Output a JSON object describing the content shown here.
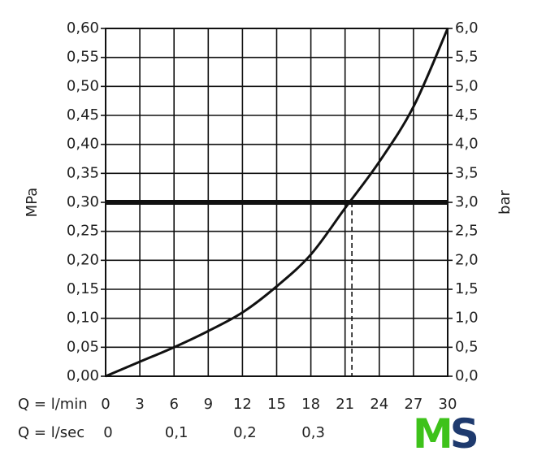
{
  "chart_data": {
    "type": "line",
    "y_label": "MPa",
    "y2_label": "bar",
    "x_row_label": "Q = l/min",
    "x2_row_label": "Q = l/sec",
    "x": [
      0,
      3,
      6,
      9,
      12,
      15,
      18,
      21,
      24,
      27,
      30
    ],
    "values": [
      0,
      0.025,
      0.05,
      0.078,
      0.11,
      0.155,
      0.21,
      0.29,
      0.37,
      0.465,
      0.6
    ],
    "color": "#111111",
    "xlim": [
      0,
      30
    ],
    "xticks": [
      0,
      3,
      6,
      9,
      12,
      15,
      18,
      21,
      24,
      27,
      30
    ],
    "x2lim": [
      0,
      0.5
    ],
    "x2ticks": [
      0,
      {
        "value": 0.1,
        "label": "0,1"
      },
      {
        "value": 0.2,
        "label": "0,2"
      },
      {
        "value": 0.3,
        "label": "0,3"
      }
    ],
    "ylim": [
      0,
      0.6
    ],
    "yticks": [
      {
        "value": 0,
        "label": "0,00"
      },
      {
        "value": 0.05,
        "label": "0,05"
      },
      {
        "value": 0.1,
        "label": "0,10"
      },
      {
        "value": 0.15,
        "label": "0,15"
      },
      {
        "value": 0.2,
        "label": "0,20"
      },
      {
        "value": 0.25,
        "label": "0,25"
      },
      {
        "value": 0.3,
        "label": "0,30"
      },
      {
        "value": 0.35,
        "label": "0,35"
      },
      {
        "value": 0.4,
        "label": "0,40"
      },
      {
        "value": 0.45,
        "label": "0,45"
      },
      {
        "value": 0.5,
        "label": "0,50"
      },
      {
        "value": 0.55,
        "label": "0,55"
      },
      {
        "value": 0.6,
        "label": "0,60"
      }
    ],
    "y2lim": [
      0,
      6
    ],
    "y2ticks": [
      {
        "value": 0,
        "label": "0,0"
      },
      {
        "value": 0.5,
        "label": "0,5"
      },
      {
        "value": 1,
        "label": "1,0"
      },
      {
        "value": 1.5,
        "label": "1,5"
      },
      {
        "value": 2,
        "label": "2,0"
      },
      {
        "value": 2.5,
        "label": "2,5"
      },
      {
        "value": 3,
        "label": "3,0"
      },
      {
        "value": 3.5,
        "label": "3,5"
      },
      {
        "value": 4,
        "label": "4,0"
      },
      {
        "value": 4.5,
        "label": "4,5"
      },
      {
        "value": 5,
        "label": "5,0"
      },
      {
        "value": 5.5,
        "label": "5,5"
      },
      {
        "value": 6,
        "label": "6,0"
      }
    ],
    "grid": true,
    "reference_y": 0.3,
    "reference_x": 21.6,
    "logo": {
      "left": "M",
      "right": "S",
      "left_color": "#3ec21a",
      "right_color": "#1e3a6e"
    }
  }
}
